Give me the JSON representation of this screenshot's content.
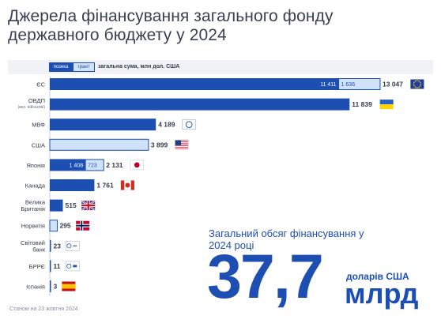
{
  "title": "Джерела фінансування загального фонду державного бюджету у 2024",
  "legend": {
    "loan": "позика",
    "grant": "грант",
    "total": "загальна сума, млн дол. США"
  },
  "footnote": "Станом на 23 жовтня 2024",
  "summary": {
    "title": "Загальний обсяг фінансування у 2024 році",
    "value": "37,7",
    "unit_top": "доларів США",
    "unit_bottom": "млрд"
  },
  "colors": {
    "loan": "#1d4fb3",
    "grant": "#cfe2f8",
    "text": "#333b4d"
  },
  "chart_data": {
    "type": "bar",
    "orientation": "horizontal",
    "stacked": true,
    "unit": "млн дол. США",
    "xlim": [
      0,
      13047
    ],
    "series": [
      {
        "name": "позика",
        "color": "#1d4fb3"
      },
      {
        "name": "грант",
        "color": "#cfe2f8"
      }
    ],
    "rows": [
      {
        "label": "ЄС",
        "loan": 11411,
        "grant": 1636,
        "total": 13047,
        "loan_label": "11 411",
        "grant_label": "1 636",
        "total_label": "13 047",
        "flag": "eu-flag-icon"
      },
      {
        "label": "ОВДП",
        "sublabel": "(вкл. військові)",
        "loan": 11839,
        "grant": 0,
        "total": 11839,
        "total_label": "11 839",
        "flag": "ukraine-flag-icon"
      },
      {
        "label": "МВФ",
        "loan": 4189,
        "grant": 0,
        "total": 4189,
        "total_label": "4 189",
        "flag": "imf-logo-icon"
      },
      {
        "label": "США",
        "loan": 0,
        "grant": 3899,
        "total": 3899,
        "total_label": "3 899",
        "flag": "usa-flag-icon"
      },
      {
        "label": "Японія",
        "loan": 1408,
        "grant": 723,
        "total": 2131,
        "loan_label": "1 408",
        "grant_label": "723",
        "total_label": "2 131",
        "flag": "japan-flag-icon"
      },
      {
        "label": "Канада",
        "loan": 1761,
        "grant": 0,
        "total": 1761,
        "total_label": "1 761",
        "flag": "canada-flag-icon"
      },
      {
        "label": "Велика Британія",
        "loan": 515,
        "grant": 0,
        "total": 515,
        "total_label": "515",
        "flag": "uk-flag-icon"
      },
      {
        "label": "Норвегія",
        "loan": 0,
        "grant": 295,
        "total": 295,
        "total_label": "295",
        "flag": "norway-flag-icon"
      },
      {
        "label": "Світовий банк",
        "loan": 23,
        "grant": 0,
        "total": 23,
        "total_label": "23",
        "flag": "world-bank-logo-icon"
      },
      {
        "label": "БРРЄ",
        "loan": 11,
        "grant": 0,
        "total": 11,
        "total_label": "11",
        "flag": "ceb-logo-icon"
      },
      {
        "label": "Іспанія",
        "loan": 3,
        "grant": 0,
        "total": 3,
        "total_label": "3",
        "flag": "spain-flag-icon"
      }
    ]
  }
}
